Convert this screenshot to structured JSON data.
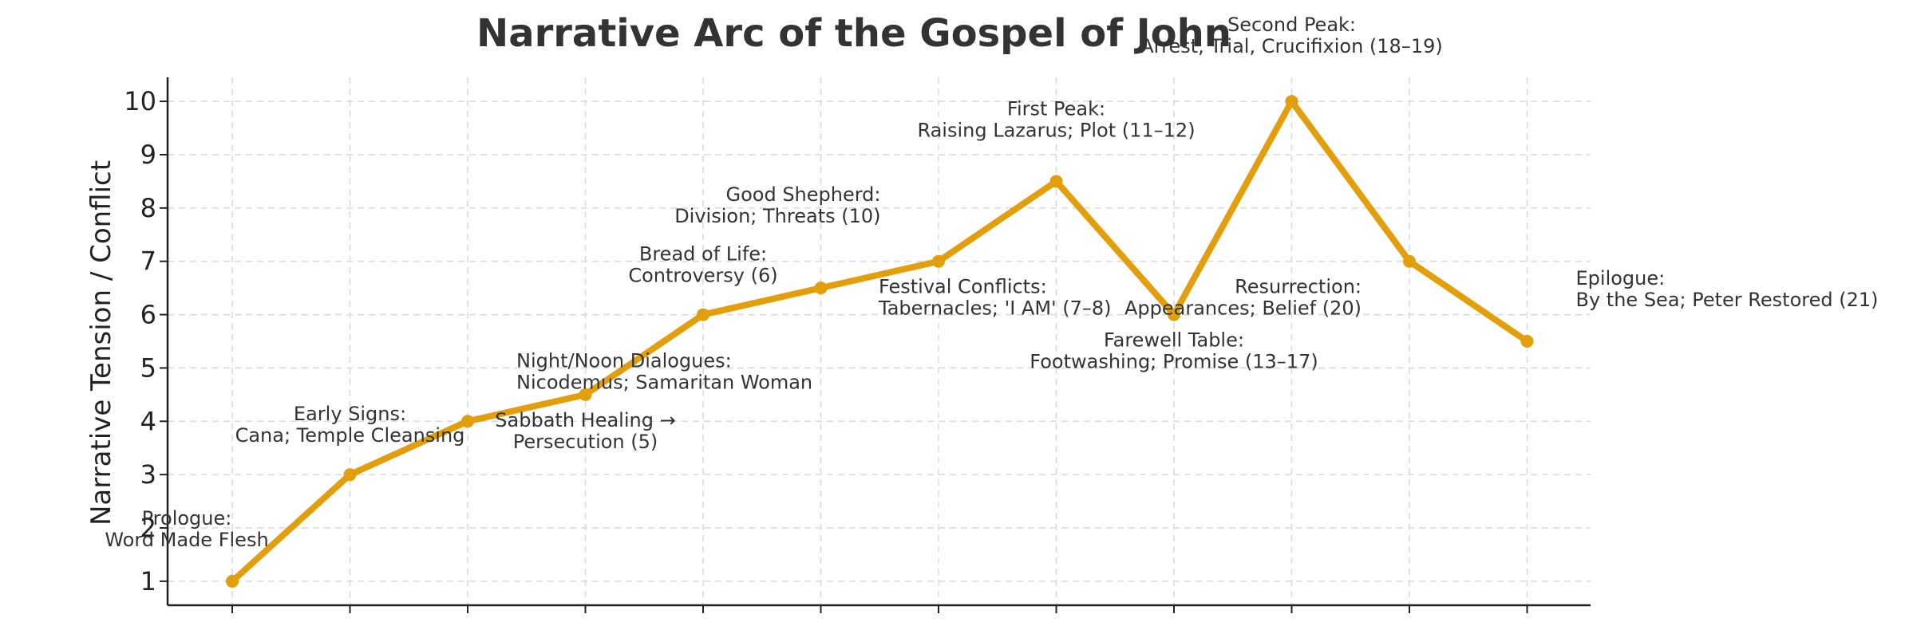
{
  "chart_data": {
    "type": "line",
    "title": "Narrative Arc of the Gospel of John",
    "ylabel": "Narrative Tension / Conflict",
    "xlabel": "",
    "ylim": [
      0.55,
      10.45
    ],
    "yticks": [
      "1",
      "2",
      "3",
      "4",
      "5",
      "6",
      "7",
      "8",
      "9",
      "10"
    ],
    "grid": true,
    "line_color": "#E39E0C",
    "points": [
      {
        "x": 1,
        "y": 1,
        "label_lines": [
          "Prologue:",
          "Word Made Flesh"
        ]
      },
      {
        "x": 2,
        "y": 3,
        "label_lines": [
          "Early Signs:",
          "Cana; Temple Cleansing"
        ]
      },
      {
        "x": 3,
        "y": 4,
        "label_lines": [
          "Night/Noon Dialogues:",
          "Nicodemus; Samaritan Woman"
        ]
      },
      {
        "x": 4,
        "y": 4.5,
        "label_lines": [
          "Sabbath Healing →",
          "Persecution (5)"
        ]
      },
      {
        "x": 5,
        "y": 6,
        "label_lines": [
          "Bread of Life:",
          "Controversy (6)"
        ]
      },
      {
        "x": 6,
        "y": 6.5,
        "label_lines": [
          "Good Shepherd:",
          "Division; Threats (10)"
        ]
      },
      {
        "x": 7,
        "y": 7,
        "label_lines": [
          "Festival Conflicts:",
          "Tabernacles; 'I AM' (7–8)"
        ]
      },
      {
        "x": 8,
        "y": 8.5,
        "label_lines": [
          "First Peak:",
          "Raising Lazarus; Plot (11–12)"
        ]
      },
      {
        "x": 9,
        "y": 6,
        "label_lines": [
          "Farewell Table:",
          "Footwashing; Promise (13–17)"
        ]
      },
      {
        "x": 10,
        "y": 10,
        "label_lines": [
          "Second Peak:",
          "Arrest, Trial, Crucifixion (18–19)"
        ]
      },
      {
        "x": 11,
        "y": 7,
        "label_lines": [
          "Resurrection:",
          "Appearances; Belief (20)"
        ]
      },
      {
        "x": 12,
        "y": 5.5,
        "label_lines": [
          "Epilogue:",
          "By the Sea; Peter Restored (21)"
        ]
      }
    ]
  }
}
